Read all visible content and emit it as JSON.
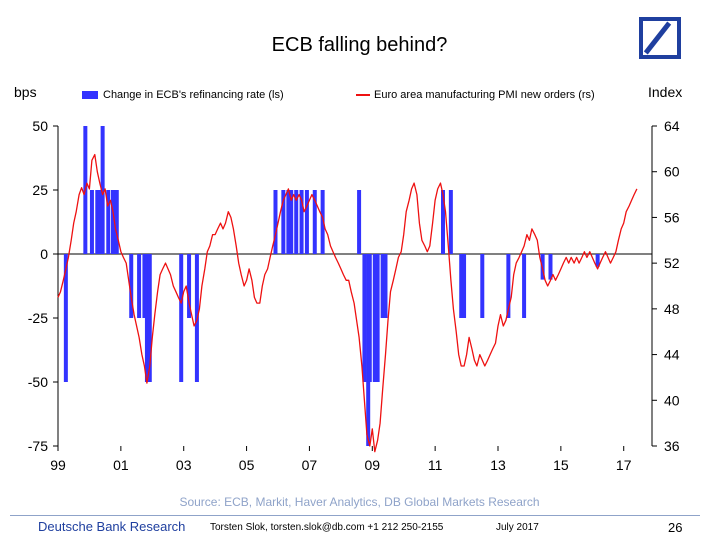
{
  "header": {
    "title": "ECB falling behind?"
  },
  "chart_data": {
    "type": "bar",
    "title": "ECB falling behind?",
    "left_axis": {
      "label": "bps",
      "ylim": [
        -75,
        50
      ],
      "ticks": [
        -75,
        -50,
        -25,
        0,
        25,
        50
      ]
    },
    "right_axis": {
      "label": "Index",
      "ylim": [
        36,
        64
      ],
      "ticks": [
        36,
        40,
        44,
        48,
        52,
        56,
        60,
        64
      ]
    },
    "x_axis": {
      "range": [
        1999,
        2017.9
      ],
      "ticks": [
        1999,
        2001,
        2003,
        2005,
        2007,
        2009,
        2011,
        2013,
        2015,
        2017
      ],
      "tick_labels": [
        "99",
        "01",
        "03",
        "05",
        "07",
        "09",
        "11",
        "13",
        "15",
        "17"
      ]
    },
    "legend": [
      "Change in ECB's refinancing rate (ls)",
      "Euro area manufacturing PMI new orders (rs)"
    ],
    "series": [
      {
        "name": "Change in ECB's refinancing rate (ls)",
        "type": "bar",
        "axis": "left",
        "color": "#3333ff",
        "points": [
          [
            1999.25,
            -50
          ],
          [
            1999.87,
            50
          ],
          [
            2000.08,
            25
          ],
          [
            2000.25,
            25
          ],
          [
            2000.33,
            25
          ],
          [
            2000.42,
            50
          ],
          [
            2000.6,
            25
          ],
          [
            2000.75,
            25
          ],
          [
            2000.87,
            25
          ],
          [
            2001.33,
            -25
          ],
          [
            2001.58,
            -25
          ],
          [
            2001.75,
            -25
          ],
          [
            2001.83,
            -50
          ],
          [
            2001.92,
            -50
          ],
          [
            2002.92,
            -50
          ],
          [
            2003.17,
            -25
          ],
          [
            2003.42,
            -50
          ],
          [
            2005.92,
            25
          ],
          [
            2006.17,
            25
          ],
          [
            2006.33,
            25
          ],
          [
            2006.42,
            25
          ],
          [
            2006.58,
            25
          ],
          [
            2006.75,
            25
          ],
          [
            2006.92,
            25
          ],
          [
            2007.17,
            25
          ],
          [
            2007.42,
            25
          ],
          [
            2008.58,
            25
          ],
          [
            2008.75,
            -50
          ],
          [
            2008.87,
            -75
          ],
          [
            2008.92,
            -50
          ],
          [
            2009.08,
            -50
          ],
          [
            2009.17,
            -50
          ],
          [
            2009.33,
            -25
          ],
          [
            2009.42,
            -25
          ],
          [
            2011.25,
            25
          ],
          [
            2011.5,
            25
          ],
          [
            2011.83,
            -25
          ],
          [
            2011.92,
            -25
          ],
          [
            2012.5,
            -25
          ],
          [
            2013.33,
            -25
          ],
          [
            2013.83,
            -25
          ],
          [
            2014.42,
            -10
          ],
          [
            2014.67,
            -10
          ],
          [
            2016.17,
            -5
          ]
        ]
      },
      {
        "name": "Euro area manufacturing PMI new orders (rs)",
        "type": "line",
        "axis": "right",
        "color": "#ee1111",
        "points": [
          [
            1999.0,
            49.0
          ],
          [
            1999.08,
            49.5
          ],
          [
            1999.17,
            50.5
          ],
          [
            1999.25,
            51.5
          ],
          [
            1999.33,
            52.5
          ],
          [
            1999.42,
            54.0
          ],
          [
            1999.5,
            55.5
          ],
          [
            1999.58,
            56.5
          ],
          [
            1999.67,
            58.0
          ],
          [
            1999.75,
            58.6
          ],
          [
            1999.83,
            58.0
          ],
          [
            1999.92,
            59.0
          ],
          [
            2000.0,
            58.5
          ],
          [
            2000.08,
            61.0
          ],
          [
            2000.17,
            61.5
          ],
          [
            2000.25,
            60.0
          ],
          [
            2000.33,
            59.0
          ],
          [
            2000.42,
            58.0
          ],
          [
            2000.5,
            58.5
          ],
          [
            2000.58,
            57.0
          ],
          [
            2000.67,
            57.5
          ],
          [
            2000.75,
            56.5
          ],
          [
            2000.83,
            55.0
          ],
          [
            2000.92,
            54.0
          ],
          [
            2001.0,
            53.0
          ],
          [
            2001.08,
            52.5
          ],
          [
            2001.17,
            52.0
          ],
          [
            2001.25,
            50.5
          ],
          [
            2001.33,
            49.0
          ],
          [
            2001.42,
            47.5
          ],
          [
            2001.5,
            46.5
          ],
          [
            2001.58,
            45.5
          ],
          [
            2001.67,
            44.0
          ],
          [
            2001.75,
            43.0
          ],
          [
            2001.83,
            41.5
          ],
          [
            2001.92,
            43.0
          ],
          [
            2002.0,
            45.5
          ],
          [
            2002.08,
            47.5
          ],
          [
            2002.17,
            49.5
          ],
          [
            2002.25,
            51.0
          ],
          [
            2002.33,
            51.5
          ],
          [
            2002.42,
            52.0
          ],
          [
            2002.5,
            51.5
          ],
          [
            2002.58,
            51.0
          ],
          [
            2002.67,
            50.0
          ],
          [
            2002.75,
            49.5
          ],
          [
            2002.83,
            49.0
          ],
          [
            2002.92,
            48.5
          ],
          [
            2003.0,
            49.5
          ],
          [
            2003.08,
            50.0
          ],
          [
            2003.17,
            48.5
          ],
          [
            2003.25,
            47.5
          ],
          [
            2003.33,
            46.5
          ],
          [
            2003.42,
            47.0
          ],
          [
            2003.5,
            48.0
          ],
          [
            2003.58,
            50.0
          ],
          [
            2003.67,
            51.5
          ],
          [
            2003.75,
            53.0
          ],
          [
            2003.83,
            53.5
          ],
          [
            2003.92,
            54.5
          ],
          [
            2004.0,
            54.5
          ],
          [
            2004.08,
            55.0
          ],
          [
            2004.17,
            55.5
          ],
          [
            2004.25,
            55.0
          ],
          [
            2004.33,
            55.5
          ],
          [
            2004.42,
            56.5
          ],
          [
            2004.5,
            56.0
          ],
          [
            2004.58,
            55.0
          ],
          [
            2004.67,
            53.5
          ],
          [
            2004.75,
            52.0
          ],
          [
            2004.83,
            51.0
          ],
          [
            2004.92,
            50.0
          ],
          [
            2005.0,
            50.5
          ],
          [
            2005.08,
            51.5
          ],
          [
            2005.17,
            50.5
          ],
          [
            2005.25,
            49.0
          ],
          [
            2005.33,
            48.5
          ],
          [
            2005.42,
            48.5
          ],
          [
            2005.5,
            50.0
          ],
          [
            2005.58,
            51.0
          ],
          [
            2005.67,
            51.5
          ],
          [
            2005.75,
            52.5
          ],
          [
            2005.83,
            53.5
          ],
          [
            2005.92,
            54.5
          ],
          [
            2006.0,
            55.5
          ],
          [
            2006.08,
            56.5
          ],
          [
            2006.17,
            57.5
          ],
          [
            2006.25,
            58.0
          ],
          [
            2006.33,
            58.5
          ],
          [
            2006.42,
            57.5
          ],
          [
            2006.5,
            58.0
          ],
          [
            2006.58,
            57.5
          ],
          [
            2006.67,
            58.0
          ],
          [
            2006.75,
            57.5
          ],
          [
            2006.83,
            56.5
          ],
          [
            2006.92,
            57.0
          ],
          [
            2007.0,
            57.5
          ],
          [
            2007.08,
            58.0
          ],
          [
            2007.17,
            57.5
          ],
          [
            2007.25,
            57.0
          ],
          [
            2007.33,
            56.5
          ],
          [
            2007.42,
            56.0
          ],
          [
            2007.5,
            55.0
          ],
          [
            2007.58,
            54.5
          ],
          [
            2007.67,
            53.5
          ],
          [
            2007.75,
            53.0
          ],
          [
            2007.83,
            52.5
          ],
          [
            2007.92,
            52.0
          ],
          [
            2008.0,
            51.5
          ],
          [
            2008.08,
            51.0
          ],
          [
            2008.17,
            50.5
          ],
          [
            2008.25,
            50.5
          ],
          [
            2008.33,
            49.5
          ],
          [
            2008.42,
            48.5
          ],
          [
            2008.5,
            47.0
          ],
          [
            2008.58,
            45.5
          ],
          [
            2008.67,
            43.0
          ],
          [
            2008.75,
            40.0
          ],
          [
            2008.83,
            37.0
          ],
          [
            2008.92,
            36.0
          ],
          [
            2009.0,
            37.5
          ],
          [
            2009.08,
            35.5
          ],
          [
            2009.17,
            36.5
          ],
          [
            2009.25,
            38.0
          ],
          [
            2009.33,
            41.0
          ],
          [
            2009.42,
            44.0
          ],
          [
            2009.5,
            47.0
          ],
          [
            2009.58,
            49.5
          ],
          [
            2009.67,
            50.5
          ],
          [
            2009.75,
            51.5
          ],
          [
            2009.83,
            52.5
          ],
          [
            2009.92,
            53.0
          ],
          [
            2010.0,
            54.5
          ],
          [
            2010.08,
            56.5
          ],
          [
            2010.17,
            57.5
          ],
          [
            2010.25,
            58.5
          ],
          [
            2010.33,
            59.0
          ],
          [
            2010.42,
            58.0
          ],
          [
            2010.5,
            55.5
          ],
          [
            2010.58,
            54.0
          ],
          [
            2010.67,
            53.5
          ],
          [
            2010.75,
            53.0
          ],
          [
            2010.83,
            53.5
          ],
          [
            2010.92,
            55.5
          ],
          [
            2011.0,
            57.5
          ],
          [
            2011.08,
            58.5
          ],
          [
            2011.17,
            59.0
          ],
          [
            2011.25,
            58.0
          ],
          [
            2011.33,
            56.5
          ],
          [
            2011.42,
            53.5
          ],
          [
            2011.5,
            50.5
          ],
          [
            2011.58,
            48.0
          ],
          [
            2011.67,
            46.0
          ],
          [
            2011.75,
            44.0
          ],
          [
            2011.83,
            43.0
          ],
          [
            2011.92,
            43.0
          ],
          [
            2012.0,
            44.0
          ],
          [
            2012.08,
            45.5
          ],
          [
            2012.17,
            44.5
          ],
          [
            2012.25,
            43.5
          ],
          [
            2012.33,
            43.0
          ],
          [
            2012.42,
            44.0
          ],
          [
            2012.5,
            43.5
          ],
          [
            2012.58,
            43.0
          ],
          [
            2012.67,
            43.5
          ],
          [
            2012.75,
            44.0
          ],
          [
            2012.83,
            44.5
          ],
          [
            2012.92,
            45.0
          ],
          [
            2013.0,
            46.5
          ],
          [
            2013.08,
            47.5
          ],
          [
            2013.17,
            46.5
          ],
          [
            2013.25,
            47.0
          ],
          [
            2013.33,
            48.0
          ],
          [
            2013.42,
            49.0
          ],
          [
            2013.5,
            51.0
          ],
          [
            2013.58,
            52.0
          ],
          [
            2013.67,
            52.5
          ],
          [
            2013.75,
            53.0
          ],
          [
            2013.83,
            53.5
          ],
          [
            2013.92,
            54.5
          ],
          [
            2014.0,
            54.0
          ],
          [
            2014.08,
            55.0
          ],
          [
            2014.17,
            54.5
          ],
          [
            2014.25,
            54.0
          ],
          [
            2014.33,
            52.5
          ],
          [
            2014.42,
            51.5
          ],
          [
            2014.5,
            50.5
          ],
          [
            2014.58,
            50.0
          ],
          [
            2014.67,
            50.5
          ],
          [
            2014.75,
            51.0
          ],
          [
            2014.83,
            50.5
          ],
          [
            2014.92,
            51.0
          ],
          [
            2015.0,
            51.5
          ],
          [
            2015.08,
            52.0
          ],
          [
            2015.17,
            52.5
          ],
          [
            2015.25,
            52.0
          ],
          [
            2015.33,
            52.5
          ],
          [
            2015.42,
            52.0
          ],
          [
            2015.5,
            52.5
          ],
          [
            2015.58,
            52.0
          ],
          [
            2015.67,
            52.5
          ],
          [
            2015.75,
            53.0
          ],
          [
            2015.83,
            52.5
          ],
          [
            2015.92,
            53.0
          ],
          [
            2016.0,
            52.5
          ],
          [
            2016.08,
            52.0
          ],
          [
            2016.17,
            51.5
          ],
          [
            2016.25,
            52.0
          ],
          [
            2016.33,
            52.5
          ],
          [
            2016.42,
            53.0
          ],
          [
            2016.5,
            52.5
          ],
          [
            2016.58,
            52.0
          ],
          [
            2016.67,
            52.5
          ],
          [
            2016.75,
            53.0
          ],
          [
            2016.83,
            54.0
          ],
          [
            2016.92,
            55.0
          ],
          [
            2017.0,
            55.5
          ],
          [
            2017.08,
            56.5
          ],
          [
            2017.17,
            57.0
          ],
          [
            2017.25,
            57.5
          ],
          [
            2017.33,
            58.0
          ],
          [
            2017.42,
            58.5
          ]
        ]
      }
    ],
    "grid": false,
    "legend_position": "top"
  },
  "footer": {
    "source": "Source: ECB, Markit, Haver Analytics, DB Global Markets Research",
    "brand": "Deutsche Bank Research",
    "contact": "Torsten Slok, torsten.slok@db.com +1 212 250-2155",
    "date": "July 2017",
    "page": "26"
  }
}
